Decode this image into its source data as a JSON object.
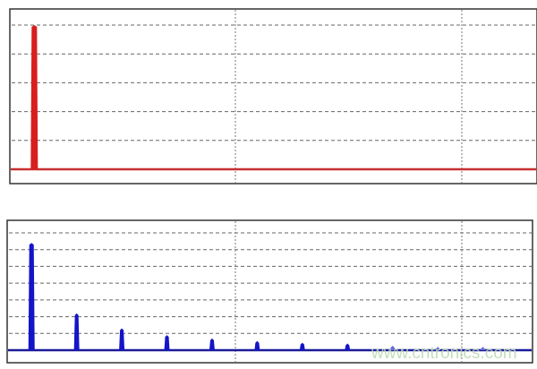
{
  "chart_data": [
    {
      "type": "bar",
      "title": "",
      "xlabel": "",
      "ylabel": "",
      "grid": true,
      "y_gridlines": 5,
      "x_gridlines": 2,
      "ylim": [
        0,
        5
      ],
      "xlim": [
        0.46,
        12.1
      ],
      "color": "#d81e1e",
      "series": [
        {
          "x": [
            1
          ],
          "values": [
            5.0
          ]
        }
      ]
    },
    {
      "type": "bar",
      "title": "",
      "xlabel": "",
      "ylabel": "",
      "grid": true,
      "y_gridlines": 7,
      "x_gridlines": 2,
      "ylim": [
        0,
        7
      ],
      "xlim": [
        0.46,
        12.1
      ],
      "color": "#1a1ad0",
      "series": [
        {
          "x": [
            1,
            2,
            3,
            4,
            5,
            6,
            7,
            8,
            9,
            10,
            11
          ],
          "values": [
            6.4,
            2.2,
            1.3,
            0.9,
            0.7,
            0.55,
            0.45,
            0.4,
            0.27,
            0.2,
            0.2
          ]
        }
      ]
    }
  ],
  "watermark": "www.cntronics.com"
}
